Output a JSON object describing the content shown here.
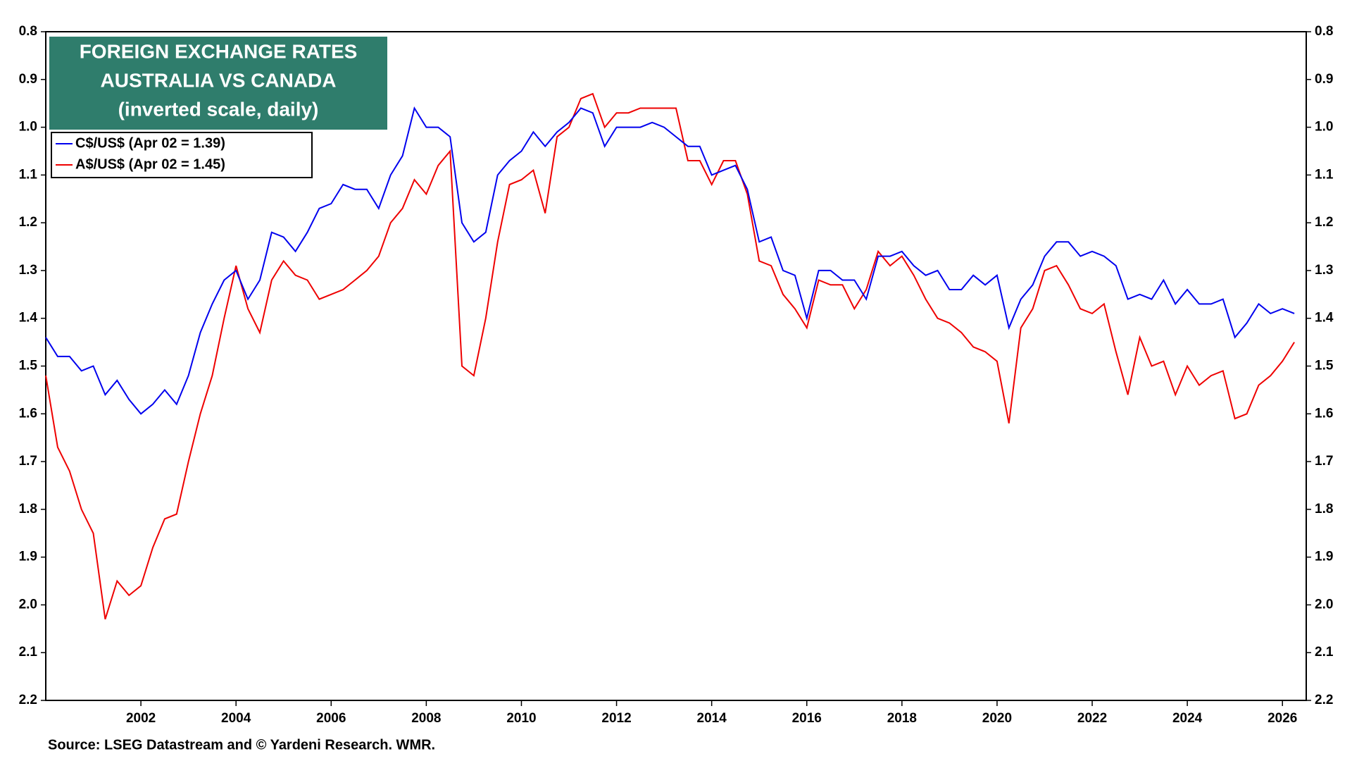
{
  "chart_data": {
    "type": "line",
    "title": [
      "FOREIGN EXCHANGE RATES",
      "AUSTRALIA VS CANADA",
      "(inverted scale, daily)"
    ],
    "source": "Source: LSEG Datastream and © Yardeni Research. WMR.",
    "xlim": [
      2000,
      2026.5
    ],
    "xticks": [
      2002,
      2004,
      2006,
      2008,
      2010,
      2012,
      2014,
      2016,
      2018,
      2020,
      2022,
      2024,
      2026
    ],
    "ylim": [
      0.8,
      2.2
    ],
    "y_inverted": true,
    "yticks": [
      0.8,
      0.9,
      {
        "value": 1,
        "label": "1.0"
      },
      1.1,
      1.2,
      1.3,
      1.4,
      1.5,
      1.6,
      1.7,
      1.8,
      1.9,
      {
        "value": 2,
        "label": "2.0"
      },
      2.1,
      2.2
    ],
    "right_axis": true,
    "legend": "upper left",
    "title_box_color": "#2f7d6c",
    "x": [
      2000,
      2000.25,
      2000.5,
      2000.75,
      2001,
      2001.25,
      2001.5,
      2001.75,
      2002,
      2002.25,
      2002.5,
      2002.75,
      2003,
      2003.25,
      2003.5,
      2003.75,
      2004,
      2004.25,
      2004.5,
      2004.75,
      2005,
      2005.25,
      2005.5,
      2005.75,
      2006,
      2006.25,
      2006.5,
      2006.75,
      2007,
      2007.25,
      2007.5,
      2007.75,
      2008,
      2008.25,
      2008.5,
      2008.75,
      2009,
      2009.25,
      2009.5,
      2009.75,
      2010,
      2010.25,
      2010.5,
      2010.75,
      2011,
      2011.25,
      2011.5,
      2011.75,
      2012,
      2012.25,
      2012.5,
      2012.75,
      2013,
      2013.25,
      2013.5,
      2013.75,
      2014,
      2014.25,
      2014.5,
      2014.75,
      2015,
      2015.25,
      2015.5,
      2015.75,
      2016,
      2016.25,
      2016.5,
      2016.75,
      2017,
      2017.25,
      2017.5,
      2017.75,
      2018,
      2018.25,
      2018.5,
      2018.75,
      2019,
      2019.25,
      2019.5,
      2019.75,
      2020,
      2020.25,
      2020.5,
      2020.75,
      2021,
      2021.25,
      2021.5,
      2021.75,
      2022,
      2022.25,
      2022.5,
      2022.75,
      2023,
      2023.25,
      2023.5,
      2023.75,
      2024,
      2024.25,
      2024.5,
      2024.75,
      2025,
      2025.25,
      2025.5,
      2025.75,
      2026,
      2026.25
    ],
    "series": [
      {
        "name": "C$/US$ (Apr 02 = 1.39)",
        "color": "#0000ee",
        "values": [
          1.44,
          1.48,
          1.48,
          1.51,
          1.5,
          1.56,
          1.53,
          1.57,
          1.6,
          1.58,
          1.55,
          1.58,
          1.52,
          1.43,
          1.37,
          1.32,
          1.3,
          1.36,
          1.32,
          1.22,
          1.23,
          1.26,
          1.22,
          1.17,
          1.16,
          1.12,
          1.13,
          1.13,
          1.17,
          1.1,
          1.06,
          0.96,
          1.0,
          1.0,
          1.02,
          1.2,
          1.24,
          1.22,
          1.1,
          1.07,
          1.05,
          1.01,
          1.04,
          1.01,
          0.99,
          0.96,
          0.97,
          1.04,
          1.0,
          1.0,
          1.0,
          0.99,
          1.0,
          1.02,
          1.04,
          1.04,
          1.1,
          1.09,
          1.08,
          1.13,
          1.24,
          1.23,
          1.3,
          1.31,
          1.4,
          1.3,
          1.3,
          1.32,
          1.32,
          1.36,
          1.27,
          1.27,
          1.26,
          1.29,
          1.31,
          1.3,
          1.34,
          1.34,
          1.31,
          1.33,
          1.31,
          1.42,
          1.36,
          1.33,
          1.27,
          1.24,
          1.24,
          1.27,
          1.26,
          1.27,
          1.29,
          1.36,
          1.35,
          1.36,
          1.32,
          1.37,
          1.34,
          1.37,
          1.37,
          1.36,
          1.44,
          1.41,
          1.37,
          1.39,
          1.38,
          1.39
        ]
      },
      {
        "name": "A$/US$ (Apr 02 = 1.45)",
        "color": "#ee0000",
        "values": [
          1.52,
          1.67,
          1.72,
          1.8,
          1.85,
          2.03,
          1.95,
          1.98,
          1.96,
          1.88,
          1.82,
          1.81,
          1.7,
          1.6,
          1.52,
          1.4,
          1.29,
          1.38,
          1.43,
          1.32,
          1.28,
          1.31,
          1.32,
          1.36,
          1.35,
          1.34,
          1.32,
          1.3,
          1.27,
          1.2,
          1.17,
          1.11,
          1.14,
          1.08,
          1.05,
          1.5,
          1.52,
          1.4,
          1.24,
          1.12,
          1.11,
          1.09,
          1.18,
          1.02,
          1.0,
          0.94,
          0.93,
          1.0,
          0.97,
          0.97,
          0.96,
          0.96,
          0.96,
          0.96,
          1.07,
          1.07,
          1.12,
          1.07,
          1.07,
          1.14,
          1.28,
          1.29,
          1.35,
          1.38,
          1.42,
          1.32,
          1.33,
          1.33,
          1.38,
          1.34,
          1.26,
          1.29,
          1.27,
          1.31,
          1.36,
          1.4,
          1.41,
          1.43,
          1.46,
          1.47,
          1.49,
          1.62,
          1.42,
          1.38,
          1.3,
          1.29,
          1.33,
          1.38,
          1.39,
          1.37,
          1.47,
          1.56,
          1.44,
          1.5,
          1.49,
          1.56,
          1.5,
          1.54,
          1.52,
          1.51,
          1.61,
          1.6,
          1.54,
          1.52,
          1.49,
          1.45
        ]
      }
    ]
  }
}
